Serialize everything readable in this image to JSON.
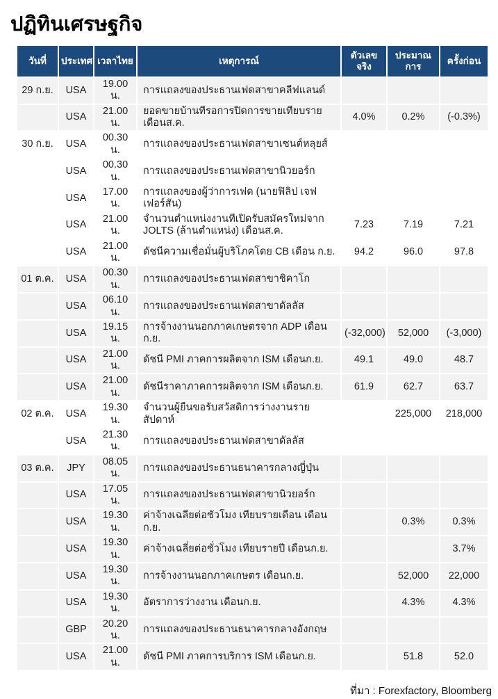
{
  "page": {
    "title": "ปฏิทินเศรษฐกิจ",
    "source_note": "ที่มา : Forexfactory, Bloomberg"
  },
  "colors": {
    "header_bg": "#1c4a7c",
    "header_text": "#ffffff",
    "row_shaded_bg": "#f2f2f2",
    "row_plain_bg": "#ffffff",
    "body_text": "#1f1f1f"
  },
  "table": {
    "headers": [
      "วันที่",
      "ประเทศ",
      "เวลาไทย",
      "เหตุการณ์",
      "ตัวเลขจริง",
      "ประมาณการ",
      "ครั้งก่อน"
    ],
    "rows": [
      {
        "date": "29 ก.ย.",
        "country": "USA",
        "time": "19.00 น.",
        "event": "การแถลงของประธานเฟดสาขาคลีฟแลนด์",
        "actual": "",
        "forecast": "",
        "previous": "",
        "shaded": true
      },
      {
        "date": "",
        "country": "USA",
        "time": "21.00 น.",
        "event": "ยอดขายบ้านที่รอการปิดการขายเทียบรายเดือนส.ค.",
        "actual": "4.0%",
        "forecast": "0.2%",
        "previous": "(-0.3%)",
        "shaded": true
      },
      {
        "date": "30 ก.ย.",
        "country": "USA",
        "time": "00.30 น.",
        "event": "การแถลงของประธานเฟดสาขาเซนต์หลุยส์",
        "actual": "",
        "forecast": "",
        "previous": "",
        "shaded": false
      },
      {
        "date": "",
        "country": "USA",
        "time": "00.30 น.",
        "event": "การแถลงของประธานเฟดสาขานิวยอร์ก",
        "actual": "",
        "forecast": "",
        "previous": "",
        "shaded": false
      },
      {
        "date": "",
        "country": "USA",
        "time": "17.00 น.",
        "event": "การแถลงของผู้ว่าการเฟด (นายฟิลิป เจฟเฟอร์สัน)",
        "actual": "",
        "forecast": "",
        "previous": "",
        "shaded": false
      },
      {
        "date": "",
        "country": "USA",
        "time": "21.00 น.",
        "event": "จำนวนตำแหน่งงานที่เปิดรับสมัครใหม่จาก JOLTS  (ล้านตำแหน่ง) เดือนส.ค.",
        "actual": "7.23",
        "forecast": "7.19",
        "previous": "7.21",
        "shaded": false
      },
      {
        "date": "",
        "country": "USA",
        "time": "21.00 น.",
        "event": "ดัชนีความเชื่อมั่นผู้บริโภคโดย CB เดือน ก.ย.",
        "actual": "94.2",
        "forecast": "96.0",
        "previous": "97.8",
        "shaded": false
      },
      {
        "date": "01 ต.ค.",
        "country": "USA",
        "time": "00.30 น.",
        "event": "การแถลงของประธานเฟดสาขาชิคาโก",
        "actual": "",
        "forecast": "",
        "previous": "",
        "shaded": true
      },
      {
        "date": "",
        "country": "USA",
        "time": "06.10 น.",
        "event": "การแถลงของประธานเฟดสาขาดัลลัส",
        "actual": "",
        "forecast": "",
        "previous": "",
        "shaded": true
      },
      {
        "date": "",
        "country": "USA",
        "time": "19.15 น.",
        "event": "การจ้างงานนอกภาคเกษตรจาก ADP เดือนก.ย.",
        "actual": "(-32,000)",
        "forecast": "52,000",
        "previous": "(-3,000)",
        "shaded": true
      },
      {
        "date": "",
        "country": "USA",
        "time": "21.00 น.",
        "event": "ดัชนี PMI ภาคการผลิตจาก ISM เดือนก.ย.",
        "actual": "49.1",
        "forecast": "49.0",
        "previous": "48.7",
        "shaded": true
      },
      {
        "date": "",
        "country": "USA",
        "time": "21.00 น.",
        "event": "ดัชนีราคาภาคการผลิตจาก ISM เดือนก.ย.",
        "actual": "61.9",
        "forecast": "62.7",
        "previous": "63.7",
        "shaded": true
      },
      {
        "date": "02 ต.ค.",
        "country": "USA",
        "time": "19.30 น.",
        "event": "จำนวนผู้ยื่นขอรับสวัสดิการว่างงานรายสัปดาห์",
        "actual": "",
        "forecast": "225,000",
        "previous": "218,000",
        "shaded": false
      },
      {
        "date": "",
        "country": "USA",
        "time": "21.30 น.",
        "event": "การแถลงของประธานเฟดสาขาดัลลัส",
        "actual": "",
        "forecast": "",
        "previous": "",
        "shaded": false
      },
      {
        "date": "03 ต.ค.",
        "country": "JPY",
        "time": "08.05 น.",
        "event": "การแถลงของประธานธนาคารกลางญี่ปุ่น",
        "actual": "",
        "forecast": "",
        "previous": "",
        "shaded": true
      },
      {
        "date": "",
        "country": "USA",
        "time": "17.05 น.",
        "event": "การแถลงของประธานเฟดสาขานิวยอร์ก",
        "actual": "",
        "forecast": "",
        "previous": "",
        "shaded": true
      },
      {
        "date": "",
        "country": "USA",
        "time": "19.30 น.",
        "event": "ค่าจ้างเฉลี่ยต่อชั่วโมง เทียบรายเดือน เดือนก.ย.",
        "actual": "",
        "forecast": "0.3%",
        "previous": "0.3%",
        "shaded": true
      },
      {
        "date": "",
        "country": "USA",
        "time": "19.30 น.",
        "event": "ค่าจ้างเฉลี่ยต่อชั่วโมง เทียบรายปี เดือนก.ย.",
        "actual": "",
        "forecast": "",
        "previous": "3.7%",
        "shaded": true
      },
      {
        "date": "",
        "country": "USA",
        "time": "19.30 น.",
        "event": "การจ้างงานนอกภาคเกษตร เดือนก.ย.",
        "actual": "",
        "forecast": "52,000",
        "previous": "22,000",
        "shaded": true
      },
      {
        "date": "",
        "country": "USA",
        "time": "19.30 น.",
        "event": "อัตราการว่างงาน เดือนก.ย.",
        "actual": "",
        "forecast": "4.3%",
        "previous": "4.3%",
        "shaded": true
      },
      {
        "date": "",
        "country": "GBP",
        "time": "20.20 น.",
        "event": "การแถลงของประธานธนาคารกลางอังกฤษ",
        "actual": "",
        "forecast": "",
        "previous": "",
        "shaded": true
      },
      {
        "date": "",
        "country": "USA",
        "time": "21.00 น.",
        "event": "ดัชนี PMI ภาคการบริการ ISM เดือนก.ย.",
        "actual": "",
        "forecast": "51.8",
        "previous": "52.0",
        "shaded": true
      }
    ]
  }
}
